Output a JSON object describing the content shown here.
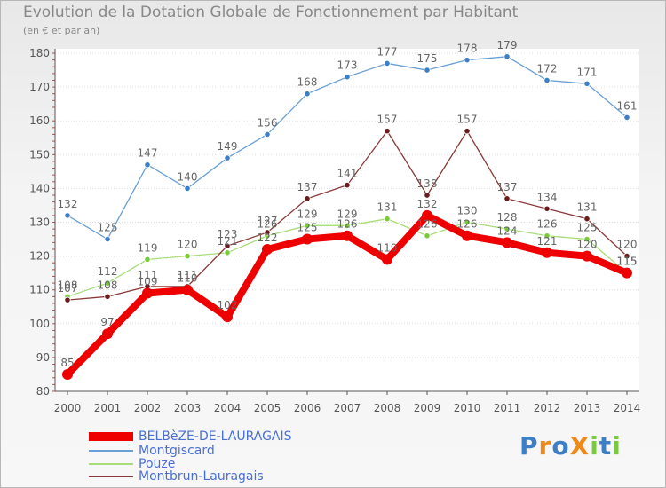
{
  "header": {
    "title": "Evolution de la Dotation Globale de Fonctionnement par Habitant",
    "subtitle": "(en € et par an)"
  },
  "logo": {
    "text": "ProXiti"
  },
  "colors": {
    "axis": "#555555",
    "grid": "#dddddd",
    "label": "#666666",
    "legend_text": "#4a6fd6"
  },
  "chart_data": {
    "type": "line",
    "title": "Evolution de la Dotation Globale de Fonctionnement par Habitant",
    "subtitle": "(en € et par an)",
    "xlabel": "",
    "ylabel": "",
    "ylim": [
      80,
      180
    ],
    "yticks": [
      80,
      90,
      100,
      110,
      120,
      130,
      140,
      150,
      160,
      170,
      180
    ],
    "grid": true,
    "legend_position": "bottom-left",
    "categories": [
      "2000",
      "2001",
      "2002",
      "2003",
      "2004",
      "2005",
      "2006",
      "2007",
      "2008",
      "2009",
      "2010",
      "2011",
      "2012",
      "2013",
      "2014"
    ],
    "series": [
      {
        "name": "BELBèZE-DE-LAURAGAIS",
        "color": "#ee0000",
        "marker": "#ee0000",
        "values": [
          85,
          97,
          109,
          110,
          102,
          122,
          125,
          126,
          119,
          132,
          126,
          124,
          121,
          120,
          115
        ]
      },
      {
        "name": "Montgiscard",
        "color": "#6a9fd4",
        "marker": "#3d7fc6",
        "values": [
          132,
          125,
          147,
          140,
          149,
          156,
          168,
          173,
          177,
          175,
          178,
          179,
          172,
          171,
          161
        ]
      },
      {
        "name": "Pouze",
        "color": "#a8dd7a",
        "marker": "#78cc3c",
        "values": [
          108,
          112,
          119,
          120,
          121,
          126,
          129,
          129,
          131,
          126,
          130,
          128,
          126,
          125,
          115
        ]
      },
      {
        "name": "Montbrun-Lauragais",
        "color": "#8a3a3a",
        "marker": "#6a1b1b",
        "values": [
          107,
          108,
          111,
          111,
          123,
          127,
          137,
          141,
          157,
          138,
          157,
          137,
          134,
          131,
          120
        ]
      }
    ]
  }
}
